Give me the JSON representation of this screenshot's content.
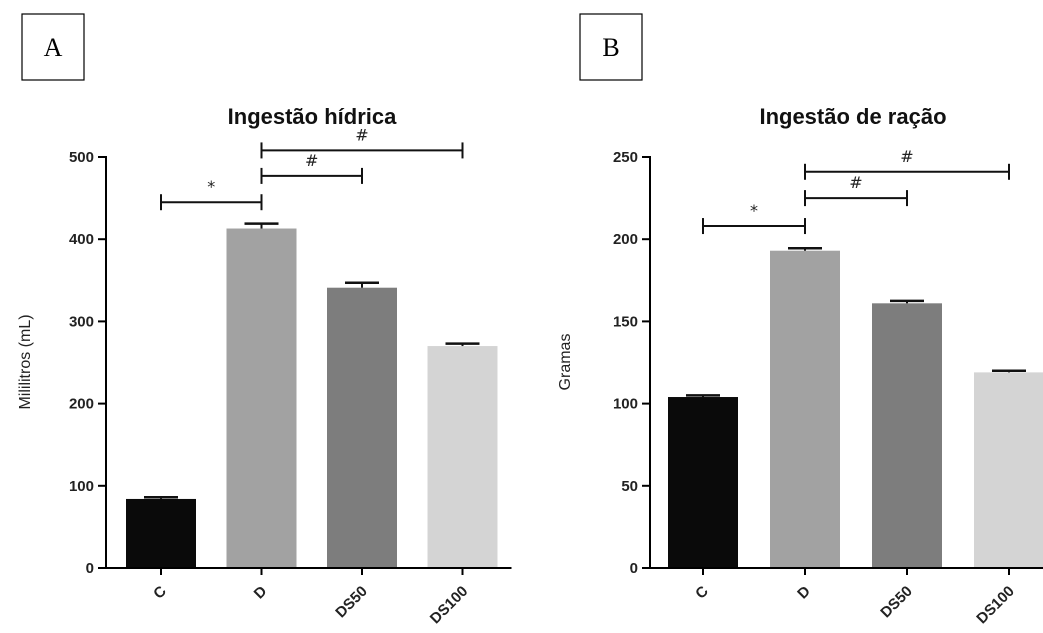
{
  "chart_data": [
    {
      "type": "bar",
      "panel_label": "A",
      "title": "Ingestão hídrica",
      "xlabel": "",
      "ylabel": "Mililitros (mL)",
      "ylim": [
        0,
        500
      ],
      "yticks": [
        0,
        100,
        200,
        300,
        400,
        500
      ],
      "categories": [
        "C",
        "D",
        "DS50",
        "DS100"
      ],
      "values": [
        84,
        413,
        341,
        270
      ],
      "errors": [
        2,
        6,
        6,
        3
      ],
      "bar_colors": [
        "#0a0a0a",
        "#a2a2a2",
        "#7d7d7d",
        "#d4d4d4"
      ],
      "significance": [
        {
          "from": "C",
          "to": "D",
          "symbol": "*",
          "y": 445
        },
        {
          "from": "D",
          "to": "DS50",
          "symbol": "#",
          "y": 477
        },
        {
          "from": "D",
          "to": "DS100",
          "symbol": "#",
          "y": 508
        }
      ]
    },
    {
      "type": "bar",
      "panel_label": "B",
      "title": "Ingestão de ração",
      "xlabel": "",
      "ylabel": "Gramas",
      "ylim": [
        0,
        250
      ],
      "yticks": [
        0,
        50,
        100,
        150,
        200,
        250
      ],
      "categories": [
        "C",
        "D",
        "DS50",
        "DS100"
      ],
      "values": [
        104,
        193,
        161,
        119
      ],
      "errors": [
        1,
        1.5,
        1.5,
        1
      ],
      "bar_colors": [
        "#0a0a0a",
        "#a2a2a2",
        "#7d7d7d",
        "#d4d4d4"
      ],
      "significance": [
        {
          "from": "C",
          "to": "D",
          "symbol": "*",
          "y": 208
        },
        {
          "from": "D",
          "to": "DS50",
          "symbol": "#",
          "y": 225
        },
        {
          "from": "D",
          "to": "DS100",
          "symbol": "#",
          "y": 241
        }
      ]
    }
  ]
}
